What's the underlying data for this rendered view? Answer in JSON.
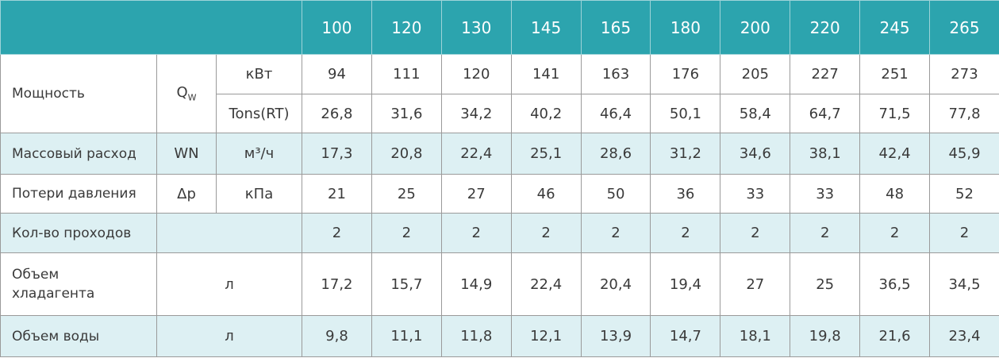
{
  "table": {
    "header": [
      "100",
      "120",
      "130",
      "145",
      "165",
      "180",
      "200",
      "220",
      "245",
      "265"
    ],
    "power": {
      "label": "Мощность",
      "symbol": "Q",
      "symbol_sub": "W",
      "rows": [
        {
          "unit": "кВт",
          "values": [
            "94",
            "111",
            "120",
            "141",
            "163",
            "176",
            "205",
            "227",
            "251",
            "273"
          ]
        },
        {
          "unit": "Tons(RT)",
          "values": [
            "26,8",
            "31,6",
            "34,2",
            "40,2",
            "46,4",
            "50,1",
            "58,4",
            "64,7",
            "71,5",
            "77,8"
          ]
        }
      ]
    },
    "flow": {
      "label": "Массовый расход",
      "symbol": "WN",
      "unit": "м³/ч",
      "values": [
        "17,3",
        "20,8",
        "22,4",
        "25,1",
        "28,6",
        "31,2",
        "34,6",
        "38,1",
        "42,4",
        "45,9"
      ]
    },
    "pressure": {
      "label": "Потери давления",
      "symbol": "Δp",
      "unit": "кПа",
      "values": [
        "21",
        "25",
        "27",
        "46",
        "50",
        "36",
        "33",
        "33",
        "48",
        "52"
      ]
    },
    "passes": {
      "label": "Кол-во проходов",
      "values": [
        "2",
        "2",
        "2",
        "2",
        "2",
        "2",
        "2",
        "2",
        "2",
        "2"
      ]
    },
    "refrigerant": {
      "label": "Объем хладагента",
      "unit": "л",
      "values": [
        "17,2",
        "15,7",
        "14,9",
        "22,4",
        "20,4",
        "19,4",
        "27",
        "25",
        "36,5",
        "34,5"
      ]
    },
    "water": {
      "label": "Объем воды",
      "unit": "л",
      "values": [
        "9,8",
        "11,1",
        "11,8",
        "12,1",
        "13,9",
        "14,7",
        "18,1",
        "19,8",
        "21,6",
        "23,4"
      ]
    }
  }
}
